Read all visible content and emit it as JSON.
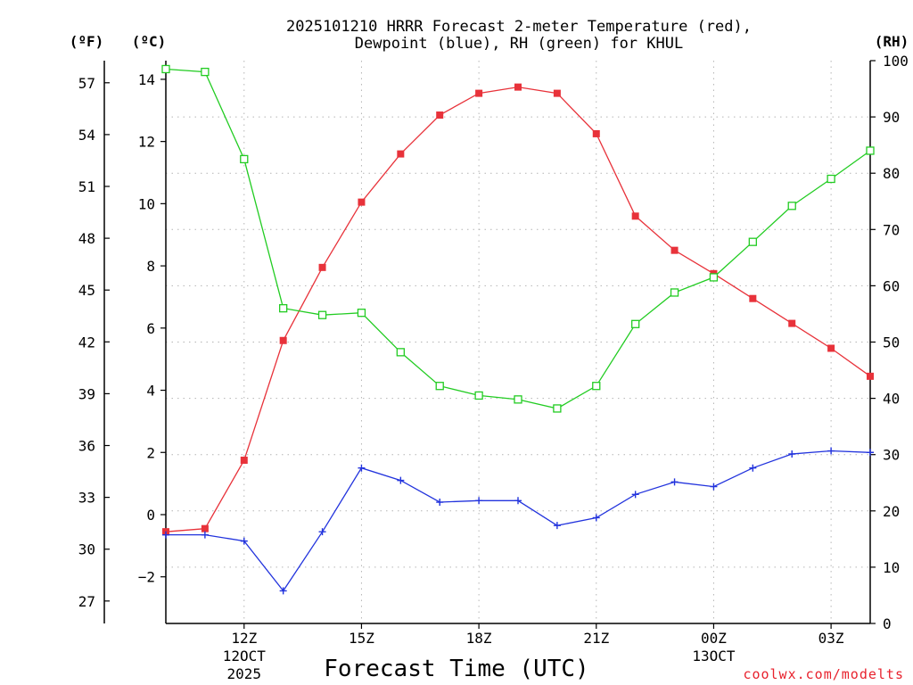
{
  "chart_data": {
    "type": "line",
    "title_line1": "2025101210 HRRR Forecast 2-meter Temperature (red),",
    "title_line2": "Dewpoint (blue), RH (green) for KHUL",
    "xlabel": "Forecast Time (UTC)",
    "credit": "coolwx.com/modelts",
    "unit_f": "(ºF)",
    "unit_c": "(ºC)",
    "unit_rh": "(RH)",
    "x_hours": [
      10,
      11,
      12,
      13,
      14,
      15,
      16,
      17,
      18,
      19,
      20,
      21,
      22,
      23,
      24,
      25,
      26,
      27,
      28
    ],
    "x_range": [
      10,
      28
    ],
    "x_ticks": [
      {
        "hour": 12,
        "label": "12Z",
        "sub1": "12OCT",
        "sub2": "2025"
      },
      {
        "hour": 15,
        "label": "15Z",
        "sub1": "",
        "sub2": ""
      },
      {
        "hour": 18,
        "label": "18Z",
        "sub1": "",
        "sub2": ""
      },
      {
        "hour": 21,
        "label": "21Z",
        "sub1": "",
        "sub2": ""
      },
      {
        "hour": 24,
        "label": "00Z",
        "sub1": "13OCT",
        "sub2": ""
      },
      {
        "hour": 27,
        "label": "03Z",
        "sub1": "",
        "sub2": ""
      }
    ],
    "ylim_c": [
      -3.5,
      14.6
    ],
    "y_ticks_c": [
      "14",
      "12",
      "10",
      "8",
      "6",
      "4",
      "2",
      "0",
      "−2"
    ],
    "y_ticks_c_values": [
      14,
      12,
      10,
      8,
      6,
      4,
      2,
      0,
      -2
    ],
    "y_ticks_f": [
      "57",
      "54",
      "51",
      "48",
      "45",
      "42",
      "39",
      "36",
      "33",
      "30",
      "27"
    ],
    "y_ticks_f_values": [
      57,
      54,
      51,
      48,
      45,
      42,
      39,
      36,
      33,
      30,
      27
    ],
    "ylim_rh": [
      0,
      100
    ],
    "y_ticks_rh": [
      "100",
      "90",
      "80",
      "70",
      "60",
      "50",
      "40",
      "30",
      "20",
      "10",
      "0"
    ],
    "y_ticks_rh_values": [
      100,
      90,
      80,
      70,
      60,
      50,
      40,
      30,
      20,
      10,
      0
    ],
    "grid": true,
    "series": [
      {
        "name": "Temperature",
        "axis": "c",
        "color": "#e8323a",
        "marker": "filled-square",
        "values": [
          -0.55,
          -0.45,
          1.75,
          5.6,
          7.95,
          10.05,
          11.6,
          12.85,
          13.55,
          13.75,
          13.55,
          12.25,
          9.6,
          8.5,
          7.75,
          6.95,
          6.15,
          5.35,
          4.45
        ]
      },
      {
        "name": "Dewpoint",
        "axis": "c",
        "color": "#2233dd",
        "marker": "plus",
        "values": [
          -0.65,
          -0.65,
          -0.85,
          -2.45,
          -0.55,
          1.5,
          1.1,
          0.4,
          0.45,
          0.45,
          -0.35,
          -0.1,
          0.65,
          1.05,
          0.9,
          1.5,
          1.95,
          2.05,
          2.0
        ]
      },
      {
        "name": "RH",
        "axis": "rh",
        "color": "#22cc22",
        "marker": "open-square",
        "values": [
          98.5,
          98.0,
          82.5,
          56.0,
          54.8,
          55.2,
          48.2,
          42.2,
          40.5,
          39.8,
          38.2,
          42.2,
          53.2,
          58.8,
          61.5,
          67.8,
          74.2,
          79.0,
          84.0
        ]
      }
    ]
  }
}
